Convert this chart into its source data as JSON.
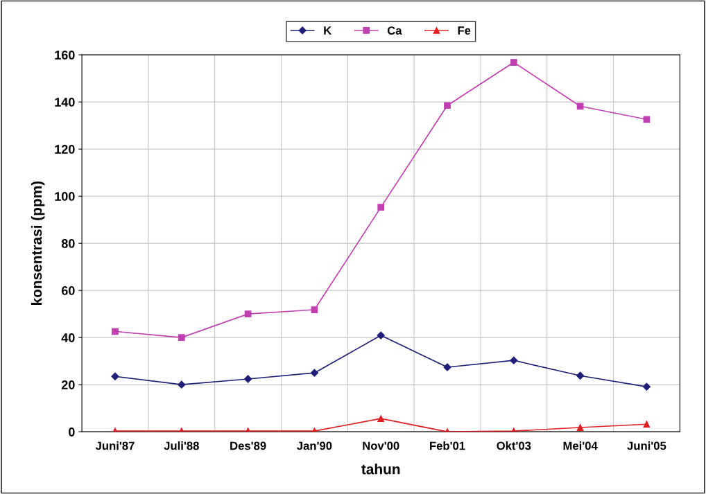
{
  "chart_data": {
    "type": "line",
    "xlabel": "tahun",
    "ylabel": "konsentrasi (ppm)",
    "categories": [
      "Juni'87",
      "Juli'88",
      "Des'89",
      "Jan'90",
      "Nov'00",
      "Feb'01",
      "Okt'03",
      "Mei'04",
      "Juni'05"
    ],
    "series": [
      {
        "name": "K",
        "color": "#1f1f7a",
        "marker": "diamond",
        "values": [
          23.5,
          20,
          22.4,
          25,
          40.9,
          27.4,
          30.3,
          23.8,
          19.1
        ]
      },
      {
        "name": "Ca",
        "color": "#c040b0",
        "marker": "square",
        "values": [
          42.6,
          40,
          50,
          51.8,
          95.3,
          138.5,
          156.8,
          138.2,
          132.6
        ]
      },
      {
        "name": "Fe",
        "color": "#e02020",
        "marker": "triangle",
        "values": [
          0.3,
          0.3,
          0.3,
          0.3,
          5.6,
          0,
          0.3,
          1.8,
          3.2
        ]
      }
    ],
    "ylim": [
      0,
      160
    ],
    "yticks": [
      0,
      20,
      40,
      60,
      80,
      100,
      120,
      140,
      160
    ],
    "grid": true,
    "legend": "top",
    "line_style": "solid"
  }
}
